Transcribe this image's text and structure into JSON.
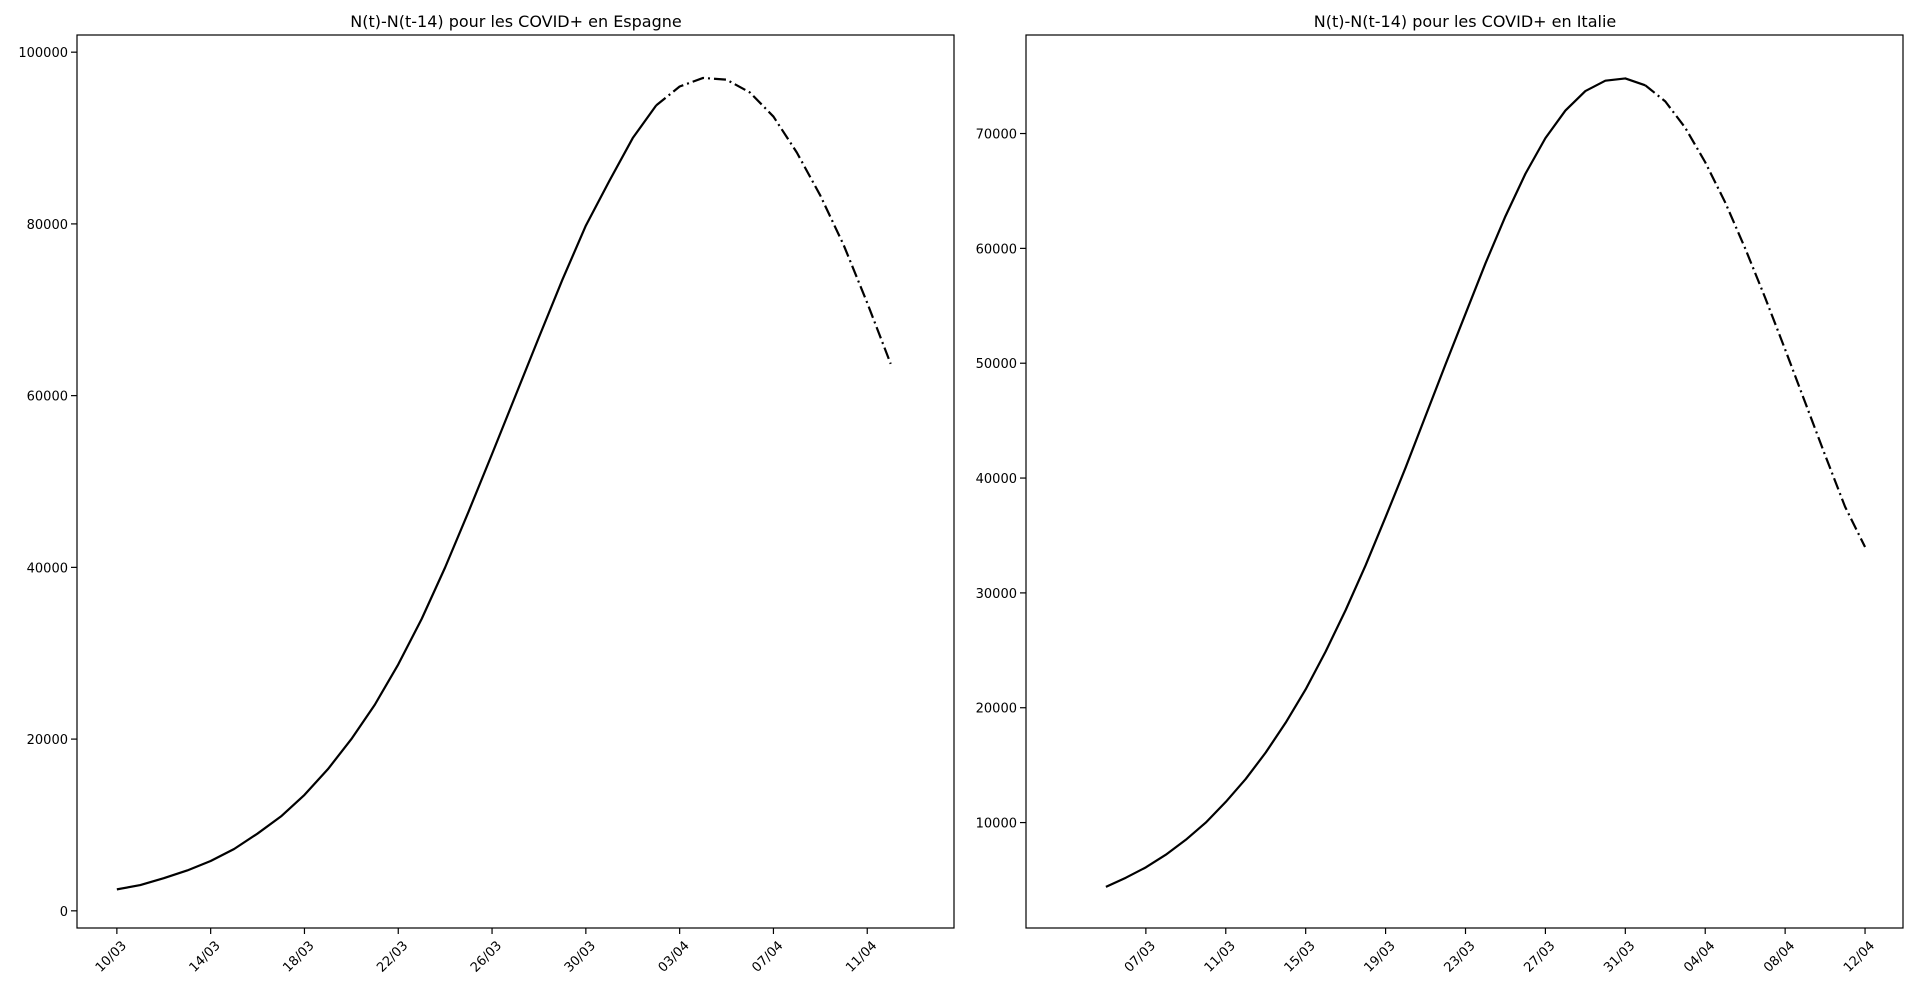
{
  "chart_data": [
    {
      "type": "line",
      "title": "N(t)-N(t-14) pour les COVID+  en Espagne",
      "xlabel": "",
      "ylabel": "",
      "ylim": [
        -2000,
        102000
      ],
      "yticks": [
        0,
        20000,
        40000,
        60000,
        80000,
        100000
      ],
      "ytick_labels": [
        "0",
        "20000",
        "40000",
        "60000",
        "80000",
        "100000"
      ],
      "xlim": [
        -1.7,
        35.7
      ],
      "xticks": [
        0,
        4,
        8,
        12,
        16,
        20,
        24,
        28,
        32
      ],
      "xtick_labels": [
        "10/03",
        "14/03",
        "18/03",
        "22/03",
        "26/03",
        "30/03",
        "03/04",
        "07/04",
        "11/04"
      ],
      "grid": false,
      "series": [
        {
          "style": "solid",
          "x": [
            0,
            1,
            2,
            3,
            4,
            5,
            6,
            7,
            8,
            9,
            10,
            11,
            12,
            13,
            14,
            15,
            16,
            17,
            18,
            19,
            20,
            21,
            22,
            23
          ],
          "values": [
            2500,
            3000,
            3800,
            4700,
            5800,
            7200,
            9000,
            11000,
            13500,
            16500,
            20000,
            24000,
            28700,
            34000,
            40000,
            46500,
            53200,
            60000,
            66800,
            73500,
            79800,
            85000,
            90000,
            93800
          ]
        },
        {
          "style": "dashdot",
          "x": [
            23,
            24,
            25,
            26,
            27,
            28,
            29,
            30,
            31,
            32,
            33
          ],
          "values": [
            93800,
            96000,
            97000,
            96800,
            95300,
            92500,
            88300,
            83300,
            77500,
            70800,
            63700
          ]
        }
      ]
    },
    {
      "type": "line",
      "title": "N(t)-N(t-14) pour les COVID+ en Italie",
      "xlabel": "",
      "ylabel": "",
      "ylim": [
        820,
        78580
      ],
      "yticks": [
        10000,
        20000,
        30000,
        40000,
        50000,
        60000,
        70000
      ],
      "ytick_labels": [
        "10000",
        "20000",
        "30000",
        "40000",
        "50000",
        "60000",
        "70000"
      ],
      "xlim": [
        -4,
        39.9
      ],
      "xticks": [
        2,
        6,
        10,
        14,
        18,
        22,
        26,
        30,
        34,
        38
      ],
      "xtick_labels": [
        "07/03",
        "11/03",
        "15/03",
        "19/03",
        "23/03",
        "27/03",
        "31/03",
        "04/04",
        "08/04",
        "12/04"
      ],
      "grid": false,
      "series": [
        {
          "style": "solid",
          "x": [
            0,
            1,
            2,
            3,
            4,
            5,
            6,
            7,
            8,
            9,
            10,
            11,
            12,
            13,
            14,
            15,
            16,
            17,
            18,
            19,
            20,
            21,
            22,
            23,
            24,
            25,
            26,
            27
          ],
          "values": [
            4400,
            5200,
            6100,
            7200,
            8500,
            10000,
            11800,
            13800,
            16100,
            18700,
            21600,
            24900,
            28500,
            32400,
            36600,
            40900,
            45400,
            49900,
            54300,
            58700,
            62800,
            66500,
            69600,
            72000,
            73700,
            74600,
            74800,
            74200
          ]
        },
        {
          "style": "dashdot",
          "x": [
            27,
            28,
            29,
            30,
            31,
            32,
            33,
            34,
            35,
            36,
            37,
            38
          ],
          "values": [
            74200,
            72800,
            70500,
            67500,
            64000,
            60000,
            55700,
            51200,
            46600,
            42000,
            37500,
            34000
          ]
        }
      ]
    }
  ]
}
